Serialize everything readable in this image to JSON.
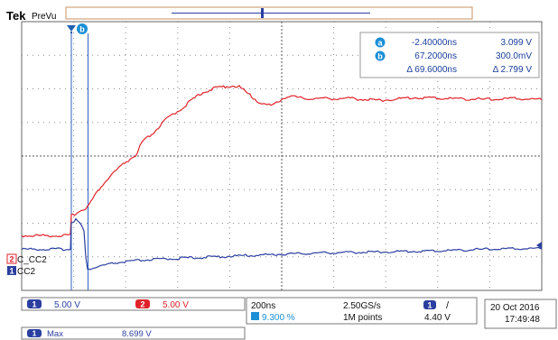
{
  "header": {
    "brand": "Tek",
    "mode": "PreVu"
  },
  "colors": {
    "ch1": "#2b3fa0",
    "ch2": "#e0232a",
    "cursor_badge": "#1c8fd6",
    "grid": "#707070",
    "trigger": "#2060b0"
  },
  "cursor_labels": {
    "a": "a",
    "b": "b",
    "a_dim": "a",
    "b_dim": "b"
  },
  "cursor_readout": {
    "a_time": "-2.40000ns",
    "a_value": "3.099 V",
    "b_time": "67.2000ns",
    "b_value": "300.0mV",
    "delta_time": "Δ 69.6000ns",
    "delta_value": "Δ 2.799 V"
  },
  "channels": {
    "ch2": {
      "number": "2",
      "name": "C_CC2"
    },
    "ch1": {
      "number": "1",
      "name": "CC2"
    }
  },
  "status": {
    "ch1_number": "1",
    "ch1_scale": "5.00 V",
    "ch2_number": "2",
    "ch2_scale": "5.00 V",
    "timebase": "200ns",
    "trigger_position": "9.300 %",
    "sample_rate": "2.50GS/s",
    "record_length": "1M points",
    "trigger_channel": "1",
    "trigger_slope": "/",
    "trigger_level": "4.40 V",
    "date": "20 Oct 2016",
    "time": "17:49:48",
    "meas_channel": "1",
    "meas_label": "Max",
    "meas_value": "8.699 V"
  }
}
